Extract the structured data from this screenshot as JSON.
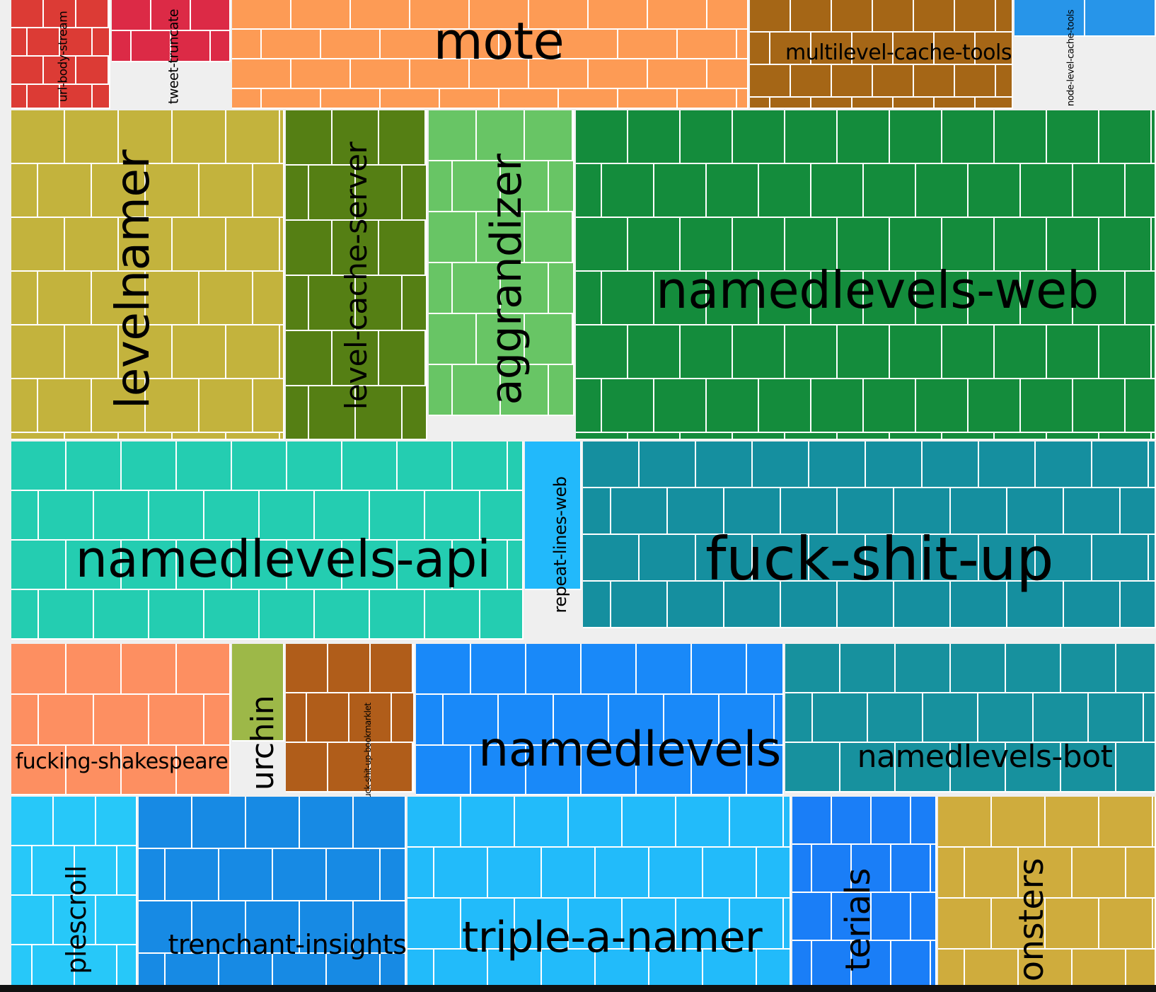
{
  "chart_data": {
    "type": "treemap",
    "title": "",
    "nodes": [
      {
        "name": "url-body-stream",
        "color": "#dc3b35"
      },
      {
        "name": "tweet-truncate",
        "color": "#dc2a46"
      },
      {
        "name": "mote",
        "color": "#fd9b55"
      },
      {
        "name": "multilevel-cache-tools",
        "color": "#a56616"
      },
      {
        "name": "node-level-cache-tools",
        "color": "#2795e9"
      },
      {
        "name": "levelnamer",
        "color": "#c3b33d"
      },
      {
        "name": "level-cache-server",
        "color": "#557f14"
      },
      {
        "name": "aggrandizer",
        "color": "#68c565"
      },
      {
        "name": "namedlevels-web",
        "color": "#148c3c"
      },
      {
        "name": "namedlevels-api",
        "color": "#24cdb1"
      },
      {
        "name": "repeat-lines-web",
        "color": "#22b9fb"
      },
      {
        "name": "fuck-shit-up",
        "color": "#158f9f"
      },
      {
        "name": "fucking-shakespeare",
        "color": "#fd8f61"
      },
      {
        "name": "urchin",
        "color": "#9db848"
      },
      {
        "name": "fuck-shit-up-bookmarklet",
        "color": "#b05d1a"
      },
      {
        "name": "namedlevels",
        "color": "#1989f9"
      },
      {
        "name": "namedlevels-bot",
        "color": "#17919e"
      },
      {
        "name": "ollablescroll",
        "display": "plescroll",
        "color": "#27c8f9"
      },
      {
        "name": "trenchant-insights",
        "color": "#178ae4"
      },
      {
        "name": "triple-a-namer",
        "color": "#22bbfa"
      },
      {
        "name": "materials",
        "display": "terials",
        "color": "#1a7ef7"
      },
      {
        "name": "monsters",
        "display": "onsters",
        "color": "#cfac3d"
      }
    ]
  }
}
